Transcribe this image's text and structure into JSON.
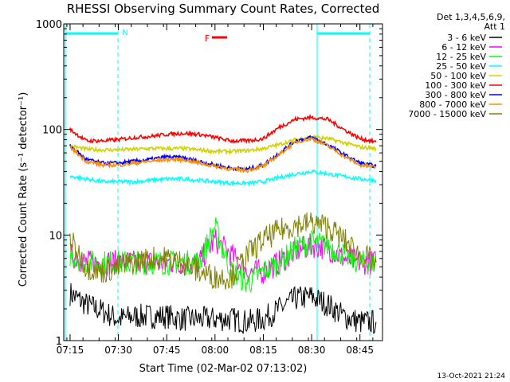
{
  "chart_data": {
    "type": "line",
    "title": "RHESSI Observing Summary Count Rates, Corrected",
    "xlabel": "Start Time (02-Mar-02 07:13:02)",
    "ylabel": "Corrected Count Rate (s⁻¹ detector⁻¹)",
    "y_scale": "log",
    "ylim": [
      1,
      1000
    ],
    "xlim": [
      "07:13:02",
      "08:52:00"
    ],
    "x_ticks": [
      "07:15",
      "07:30",
      "07:45",
      "08:00",
      "08:15",
      "08:30",
      "08:45"
    ],
    "y_ticks": [
      "1",
      "10",
      "100",
      "1000"
    ],
    "legend": {
      "position": "top-right",
      "header": [
        "Det 1,3,4,5,6,9,",
        "Att 1"
      ]
    },
    "flag_label": "F",
    "night_label": "N",
    "footer_date": "13-Oct-2021 21:24",
    "x": [
      "07:15",
      "07:20",
      "07:25",
      "07:30",
      "07:35",
      "07:40",
      "07:45",
      "07:50",
      "07:55",
      "08:00",
      "08:05",
      "08:10",
      "08:15",
      "08:20",
      "08:25",
      "08:30",
      "08:35",
      "08:40",
      "08:45",
      "08:50"
    ],
    "series": [
      {
        "name": "3 - 6 keV",
        "color": "#000000",
        "values": [
          2.8,
          2.2,
          1.9,
          1.6,
          1.7,
          1.7,
          1.7,
          1.6,
          1.6,
          1.6,
          1.6,
          1.5,
          1.6,
          2.0,
          2.5,
          2.6,
          2.2,
          1.7,
          1.5,
          1.5
        ]
      },
      {
        "name": "6 - 12 keV",
        "color": "#ff00ff",
        "values": [
          6.5,
          5.5,
          5.5,
          5.5,
          5.5,
          5.5,
          5.5,
          5.5,
          5.5,
          9.0,
          6.5,
          4.5,
          4.5,
          5.5,
          7.0,
          8.0,
          7.5,
          6.0,
          5.5,
          5.5
        ]
      },
      {
        "name": "12 - 25 keV",
        "color": "#00ff00",
        "values": [
          6.5,
          5.5,
          5.5,
          5.5,
          5.5,
          5.5,
          5.5,
          5.5,
          5.5,
          12.0,
          4.5,
          3.5,
          4.5,
          5.5,
          7.5,
          8.5,
          8.0,
          6.5,
          5.5,
          5.5
        ]
      },
      {
        "name": "25 - 50 keV",
        "color": "#00ffff",
        "values": [
          36,
          34,
          32,
          32,
          32,
          33,
          34,
          34,
          33,
          32,
          31,
          31,
          32,
          35,
          38,
          40,
          38,
          36,
          34,
          33
        ]
      },
      {
        "name": "50 - 100 keV",
        "color": "#d2d200",
        "values": [
          70,
          65,
          64,
          64,
          65,
          66,
          66,
          66,
          64,
          62,
          62,
          63,
          66,
          72,
          80,
          85,
          82,
          75,
          68,
          66
        ]
      },
      {
        "name": "100 - 300 keV",
        "color": "#ff0000",
        "values": [
          100,
          78,
          78,
          80,
          84,
          86,
          90,
          92,
          90,
          84,
          78,
          78,
          82,
          105,
          125,
          130,
          125,
          100,
          82,
          76
        ]
      },
      {
        "name": "300 - 800 keV",
        "color": "#0000ff",
        "values": [
          70,
          52,
          48,
          48,
          50,
          52,
          55,
          54,
          50,
          46,
          43,
          42,
          46,
          60,
          78,
          84,
          72,
          58,
          48,
          45
        ]
      },
      {
        "name": "800 - 7000 keV",
        "color": "#ff8c00",
        "values": [
          68,
          50,
          46,
          46,
          48,
          50,
          52,
          52,
          48,
          45,
          42,
          41,
          45,
          58,
          76,
          82,
          70,
          56,
          46,
          44
        ]
      },
      {
        "name": "7000 - 15000 keV",
        "color": "#808000",
        "values": [
          9.0,
          5.0,
          4.5,
          5.0,
          5.5,
          6.0,
          6.0,
          5.5,
          4.5,
          4.0,
          4.0,
          6.5,
          9.0,
          11.0,
          12.5,
          13.0,
          12.0,
          9.0,
          6.5,
          5.5
        ]
      }
    ]
  }
}
